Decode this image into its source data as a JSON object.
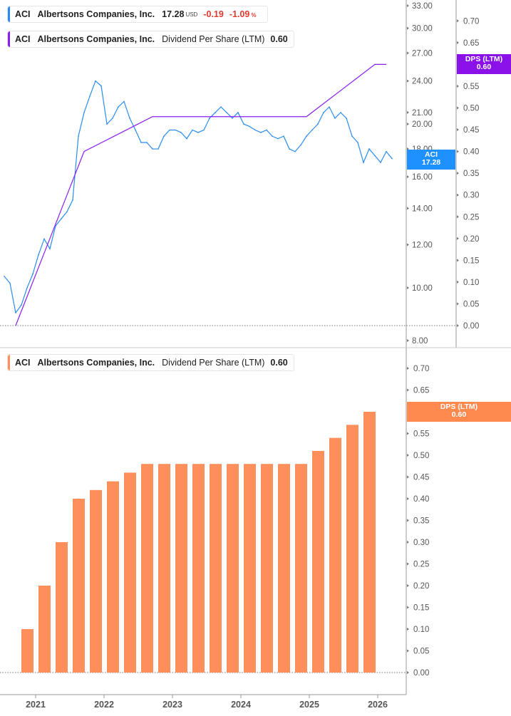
{
  "legend_price": {
    "ticker": "ACI",
    "company": "Albertsons Companies, Inc.",
    "price": "17.28",
    "currency": "USD",
    "change": "-0.19",
    "change_pct": "-1.09",
    "pct_sign": "%"
  },
  "legend_dps_top": {
    "ticker": "ACI",
    "company": "Albertsons Companies, Inc.",
    "metric": "Dividend Per Share (LTM)",
    "value": "0.60"
  },
  "legend_dps_bottom": {
    "ticker": "ACI",
    "company": "Albertsons Companies, Inc.",
    "metric": "Dividend Per Share (LTM)",
    "value": "0.60"
  },
  "badges": {
    "aci_label": "ACI",
    "aci_value": "17.28",
    "dps_label": "DPS (LTM)",
    "dps_value": "0.60",
    "dps2_label": "DPS (LTM)",
    "dps2_value": "0.60"
  },
  "colors": {
    "price": "#2a8cf0",
    "dps_line": "#8a1ef0",
    "bars": "#ff8f5a",
    "badge_price": "#1e90ff",
    "badge_dps": "#8a12e8",
    "badge_bars": "#ff8a50"
  },
  "chart_data": [
    {
      "type": "line",
      "scale": "log",
      "series": [
        {
          "name": "ACI",
          "x": [
            "2020-07",
            "2020-08",
            "2020-09",
            "2020-10",
            "2020-11",
            "2020-12",
            "2021-01",
            "2021-02",
            "2021-03",
            "2021-04",
            "2021-05",
            "2021-06",
            "2021-07",
            "2021-08",
            "2021-09",
            "2021-10",
            "2021-11",
            "2021-12",
            "2022-01",
            "2022-02",
            "2022-03",
            "2022-04",
            "2022-05",
            "2022-06",
            "2022-07",
            "2022-08",
            "2022-09",
            "2022-10",
            "2022-11",
            "2022-12",
            "2023-01",
            "2023-02",
            "2023-03",
            "2023-04",
            "2023-05",
            "2023-06",
            "2023-07",
            "2023-08",
            "2023-09",
            "2023-10",
            "2023-11",
            "2023-12",
            "2024-01",
            "2024-02",
            "2024-03",
            "2024-04",
            "2024-05",
            "2024-06",
            "2024-07",
            "2024-08",
            "2024-09",
            "2024-10",
            "2024-11",
            "2024-12",
            "2025-01",
            "2025-02",
            "2025-03",
            "2025-04",
            "2025-05",
            "2025-06",
            "2025-07",
            "2025-08",
            "2025-09",
            "2025-10",
            "2025-11",
            "2025-12",
            "2026-01",
            "2026-02",
            "2026-03"
          ],
          "y": [
            10.5,
            10.2,
            9.0,
            9.3,
            10.0,
            10.6,
            11.5,
            12.3,
            11.8,
            13.0,
            13.4,
            13.8,
            14.5,
            19.0,
            21.0,
            22.5,
            24.0,
            23.5,
            20.0,
            20.5,
            21.5,
            22.0,
            20.5,
            19.5,
            18.5,
            18.5,
            18.0,
            18.0,
            19.0,
            19.5,
            19.5,
            19.3,
            18.8,
            19.5,
            19.3,
            19.5,
            20.5,
            21.0,
            21.5,
            21.0,
            20.5,
            21.0,
            20.0,
            19.8,
            19.5,
            19.3,
            19.5,
            19.0,
            18.8,
            19.0,
            18.0,
            17.8,
            18.3,
            19.0,
            19.5,
            20.0,
            21.0,
            21.5,
            20.5,
            21.0,
            20.5,
            19.0,
            18.5,
            17.0,
            18.0,
            17.5,
            17.0,
            17.8,
            17.28
          ]
        }
      ],
      "y_ticks": [
        "33.00",
        "30.00",
        "27.00",
        "24.00",
        "21.00",
        "20.00",
        "18.00",
        "16.00",
        "14.00",
        "12.00",
        "10.00",
        "8.00"
      ],
      "ylim": [
        8,
        33
      ]
    },
    {
      "type": "line",
      "series": [
        {
          "name": "Dividend Per Share (LTM)",
          "x": [
            "2020-09",
            "2020-12",
            "2021-03",
            "2021-06",
            "2021-09",
            "2021-12",
            "2022-03",
            "2022-06",
            "2022-09",
            "2022-12",
            "2023-03",
            "2023-06",
            "2023-09",
            "2023-12",
            "2024-03",
            "2024-06",
            "2024-09",
            "2024-12",
            "2025-03",
            "2025-06",
            "2025-09",
            "2025-12",
            "2026-02"
          ],
          "y": [
            0.0,
            0.1,
            0.2,
            0.3,
            0.4,
            0.42,
            0.44,
            0.46,
            0.48,
            0.48,
            0.48,
            0.48,
            0.48,
            0.48,
            0.48,
            0.48,
            0.48,
            0.48,
            0.51,
            0.54,
            0.57,
            0.6,
            0.6
          ]
        }
      ],
      "y_ticks": [
        "0.70",
        "0.65",
        "0.60",
        "0.55",
        "0.50",
        "0.45",
        "0.40",
        "0.35",
        "0.30",
        "0.25",
        "0.20",
        "0.15",
        "0.10",
        "0.05",
        "0.00"
      ],
      "ylim": [
        0,
        0.7
      ]
    },
    {
      "type": "bar",
      "categories": [
        "2020-12",
        "2021-03",
        "2021-06",
        "2021-09",
        "2021-12",
        "2022-03",
        "2022-06",
        "2022-09",
        "2022-12",
        "2023-03",
        "2023-06",
        "2023-09",
        "2023-12",
        "2024-03",
        "2024-06",
        "2024-09",
        "2024-12",
        "2025-03",
        "2025-06",
        "2025-09",
        "2025-12"
      ],
      "values": [
        0.1,
        0.2,
        0.3,
        0.4,
        0.42,
        0.44,
        0.46,
        0.48,
        0.48,
        0.48,
        0.48,
        0.48,
        0.48,
        0.48,
        0.48,
        0.48,
        0.48,
        0.51,
        0.54,
        0.57,
        0.6
      ],
      "y_ticks": [
        "0.70",
        "0.65",
        "0.60",
        "0.55",
        "0.50",
        "0.45",
        "0.40",
        "0.35",
        "0.30",
        "0.25",
        "0.20",
        "0.15",
        "0.10",
        "0.05",
        "0.00"
      ],
      "ylim": [
        0,
        0.7
      ],
      "x_ticks": [
        "2021",
        "2022",
        "2023",
        "2024",
        "2025",
        "2026"
      ]
    }
  ]
}
